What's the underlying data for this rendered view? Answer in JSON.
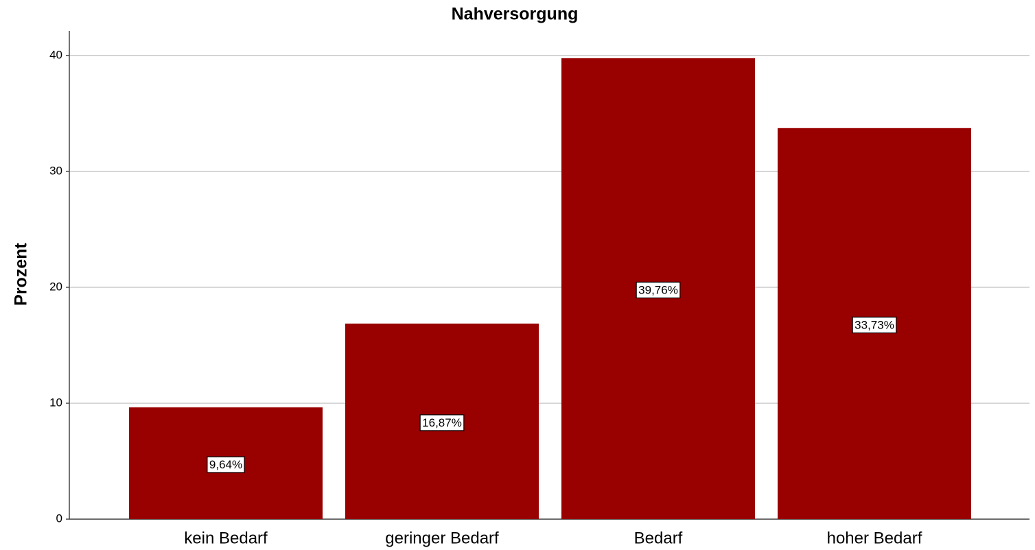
{
  "chart_data": {
    "type": "bar",
    "title": "Nahversorgung",
    "y_label": "Prozent",
    "categories": [
      "kein Bedarf",
      "geringer Bedarf",
      "Bedarf",
      "hoher Bedarf"
    ],
    "values": [
      9.64,
      16.87,
      39.76,
      33.73
    ],
    "value_labels": [
      "9,64%",
      "16,87%",
      "39,76%",
      "33,73%"
    ],
    "color": "#990000",
    "ylim": [
      0,
      42
    ],
    "yticks": [
      0,
      10,
      20,
      30,
      40
    ],
    "grid": true
  }
}
